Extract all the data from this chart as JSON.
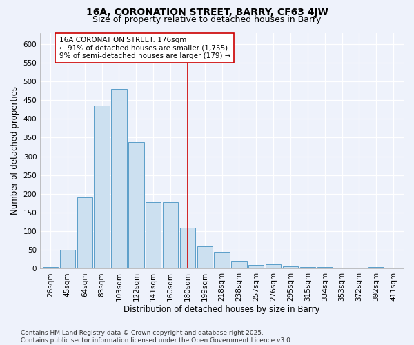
{
  "title1": "16A, CORONATION STREET, BARRY, CF63 4JW",
  "title2": "Size of property relative to detached houses in Barry",
  "xlabel": "Distribution of detached houses by size in Barry",
  "ylabel": "Number of detached properties",
  "categories": [
    "26sqm",
    "45sqm",
    "64sqm",
    "83sqm",
    "103sqm",
    "122sqm",
    "141sqm",
    "160sqm",
    "180sqm",
    "199sqm",
    "218sqm",
    "238sqm",
    "257sqm",
    "276sqm",
    "295sqm",
    "315sqm",
    "334sqm",
    "353sqm",
    "372sqm",
    "392sqm",
    "411sqm"
  ],
  "values": [
    5,
    50,
    190,
    435,
    480,
    338,
    178,
    178,
    110,
    60,
    45,
    22,
    10,
    12,
    7,
    5,
    5,
    3,
    3,
    4,
    3
  ],
  "bar_color": "#cce0f0",
  "bar_edge_color": "#5a9ec9",
  "vline_x_index": 8,
  "vline_color": "#cc0000",
  "annotation_text": "16A CORONATION STREET: 176sqm\n← 91% of detached houses are smaller (1,755)\n9% of semi-detached houses are larger (179) →",
  "annotation_box_color": "#ffffff",
  "annotation_box_edge_color": "#cc0000",
  "ylim": [
    0,
    630
  ],
  "yticks": [
    0,
    50,
    100,
    150,
    200,
    250,
    300,
    350,
    400,
    450,
    500,
    550,
    600
  ],
  "footnote": "Contains HM Land Registry data © Crown copyright and database right 2025.\nContains public sector information licensed under the Open Government Licence v3.0.",
  "background_color": "#eef2fb",
  "grid_color": "#ffffff",
  "title_fontsize": 10,
  "subtitle_fontsize": 9,
  "axis_label_fontsize": 8.5,
  "tick_fontsize": 7.5,
  "annotation_fontsize": 7.5,
  "footnote_fontsize": 6.5
}
